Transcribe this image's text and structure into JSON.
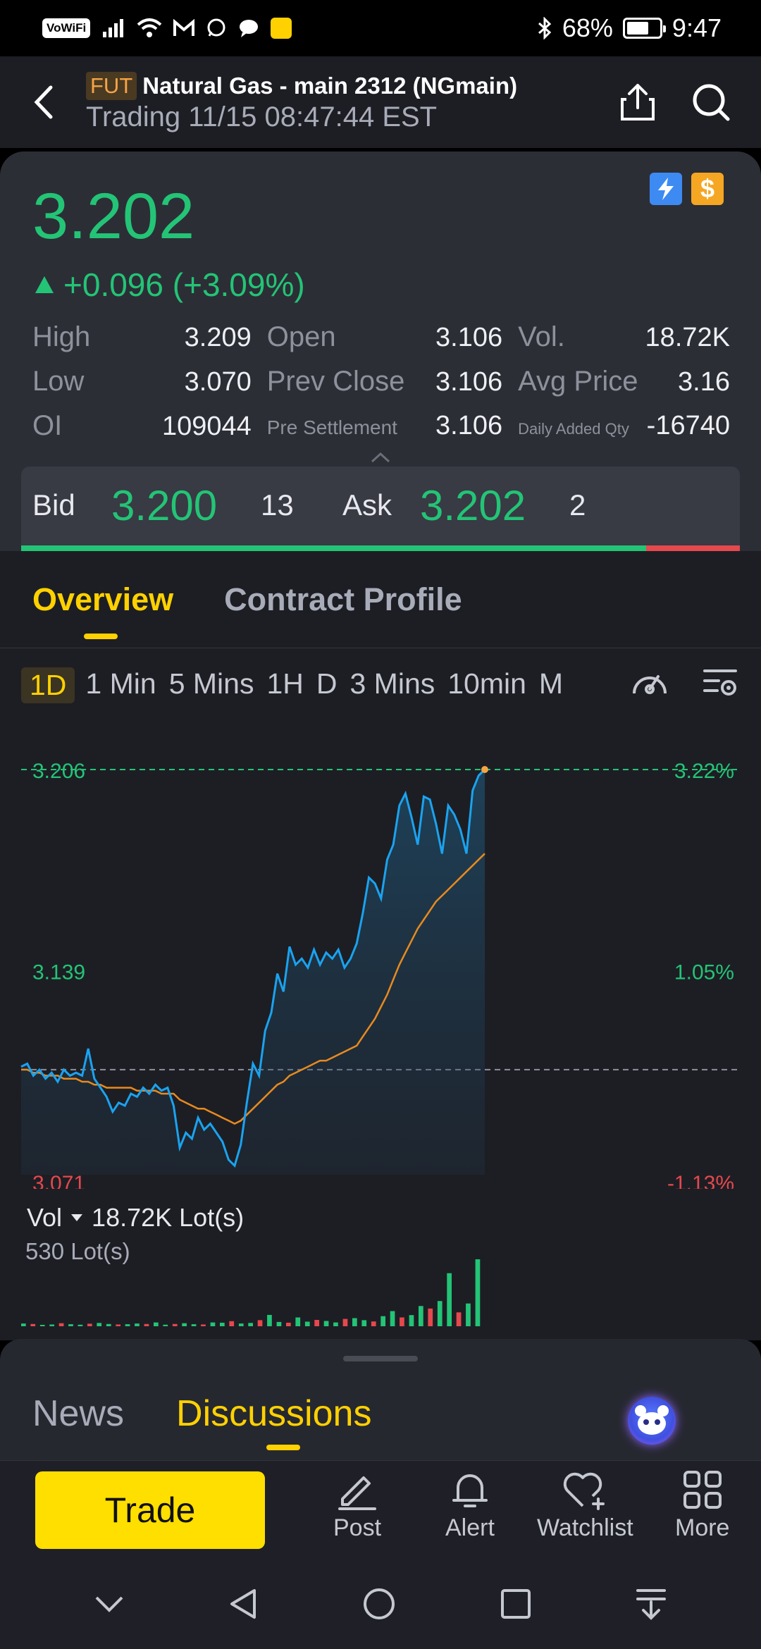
{
  "status_bar": {
    "vowifi": "VoWiFi",
    "battery": "68%",
    "time": "9:47"
  },
  "header": {
    "badge": "FUT",
    "title": "Natural Gas - main 2312 (NGmain)",
    "subtitle": "Trading 11/15 08:47:44 EST"
  },
  "quote": {
    "price": "3.202",
    "change": "+0.096 (+3.09%)",
    "dollar_badge": "$",
    "stats": [
      [
        {
          "label": "High",
          "value": "3.209"
        },
        {
          "label": "Open",
          "value": "3.106"
        },
        {
          "label": "Vol.",
          "value": "18.72K"
        }
      ],
      [
        {
          "label": "Low",
          "value": "3.070"
        },
        {
          "label": "Prev Close",
          "value": "3.106"
        },
        {
          "label": "Avg Price",
          "value": "3.16"
        }
      ],
      [
        {
          "label": "OI",
          "value": "109044"
        },
        {
          "label": "Pre Settlement",
          "value": "3.106"
        },
        {
          "label": "Daily Added Qty",
          "value": "-16740"
        }
      ]
    ],
    "bid_label": "Bid",
    "bid_price": "3.200",
    "bid_qty": "13",
    "ask_label": "Ask",
    "ask_price": "3.202",
    "ask_qty": "2",
    "bid_share": 0.87
  },
  "tabs": {
    "overview": "Overview",
    "contract_profile": "Contract Profile"
  },
  "intervals": [
    "1D",
    "1 Min",
    "5 Mins",
    "1H",
    "D",
    "3 Mins",
    "10min",
    "M"
  ],
  "active_interval": "1D",
  "chart_data": {
    "type": "line",
    "y_left_ticks": [
      "3.206",
      "3.139",
      "3.071"
    ],
    "y_right_ticks": [
      "3.22%",
      "1.05%",
      "-1.13%"
    ],
    "ylim": [
      3.071,
      3.206
    ],
    "prev_close": 3.106,
    "series": [
      {
        "color": "#1aa3f0",
        "values": [
          3.107,
          3.108,
          3.104,
          3.106,
          3.103,
          3.105,
          3.102,
          3.106,
          3.104,
          3.105,
          3.104,
          3.113,
          3.103,
          3.1,
          3.097,
          3.092,
          3.095,
          3.094,
          3.098,
          3.097,
          3.1,
          3.098,
          3.101,
          3.099,
          3.1,
          3.094,
          3.08,
          3.085,
          3.083,
          3.09,
          3.086,
          3.088,
          3.085,
          3.082,
          3.076,
          3.074,
          3.081,
          3.095,
          3.108,
          3.104,
          3.119,
          3.125,
          3.138,
          3.132,
          3.147,
          3.141,
          3.143,
          3.14,
          3.146,
          3.141,
          3.145,
          3.143,
          3.146,
          3.14,
          3.143,
          3.148,
          3.158,
          3.17,
          3.168,
          3.163,
          3.176,
          3.181,
          3.194,
          3.198,
          3.19,
          3.181,
          3.197,
          3.196,
          3.188,
          3.178,
          3.194,
          3.191,
          3.186,
          3.178,
          3.199,
          3.204,
          3.206
        ]
      },
      {
        "color": "#e88a1f",
        "values": [
          3.106,
          3.106,
          3.105,
          3.105,
          3.104,
          3.104,
          3.104,
          3.103,
          3.103,
          3.103,
          3.102,
          3.102,
          3.101,
          3.101,
          3.1,
          3.1,
          3.1,
          3.1,
          3.1,
          3.099,
          3.099,
          3.099,
          3.099,
          3.098,
          3.098,
          3.098,
          3.096,
          3.095,
          3.094,
          3.093,
          3.093,
          3.092,
          3.091,
          3.09,
          3.089,
          3.088,
          3.089,
          3.091,
          3.093,
          3.095,
          3.097,
          3.099,
          3.101,
          3.102,
          3.104,
          3.105,
          3.106,
          3.107,
          3.108,
          3.109,
          3.109,
          3.11,
          3.111,
          3.112,
          3.113,
          3.114,
          3.117,
          3.12,
          3.123,
          3.127,
          3.131,
          3.136,
          3.141,
          3.145,
          3.149,
          3.153,
          3.156,
          3.159,
          3.162,
          3.164,
          3.166,
          3.168,
          3.17,
          3.172,
          3.174,
          3.176,
          3.178
        ]
      }
    ]
  },
  "volume": {
    "label": "Vol",
    "total": "18.72K Lot(s)",
    "max_label": "530 Lot(s)",
    "bars": [
      22,
      18,
      10,
      14,
      24,
      16,
      12,
      20,
      26,
      18,
      14,
      16,
      22,
      18,
      30,
      12,
      18,
      24,
      16,
      14,
      30,
      28,
      40,
      22,
      26,
      48,
      90,
      34,
      28,
      70,
      36,
      50,
      42,
      30,
      58,
      64,
      48,
      38,
      80,
      120,
      70,
      88,
      160,
      140,
      200,
      420,
      110,
      180,
      530
    ]
  },
  "sheet": {
    "news": "News",
    "discussions": "Discussions"
  },
  "toolbar": {
    "trade": "Trade",
    "post": "Post",
    "alert": "Alert",
    "watchlist": "Watchlist",
    "more": "More"
  },
  "colors": {
    "up": "#23c476",
    "down": "#e5484d",
    "accent": "#ffd100"
  }
}
